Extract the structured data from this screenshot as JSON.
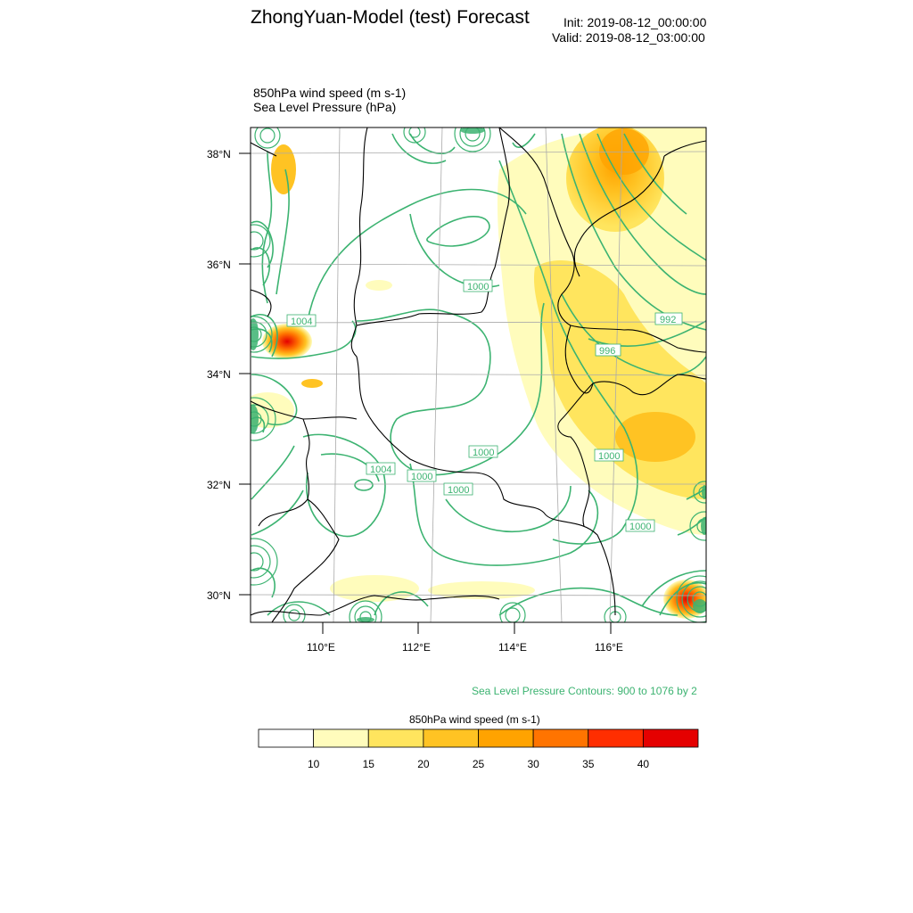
{
  "title": "ZhongYuan-Model (test) Forecast",
  "init": "Init: 2019-08-12_00:00:00",
  "valid": "Valid: 2019-08-12_03:00:00",
  "fields": {
    "wind": "850hPa wind speed   (m s-1)",
    "slp": "Sea Level Pressure   (hPa)"
  },
  "axes": {
    "lat_ticks": [
      "38°N",
      "36°N",
      "34°N",
      "32°N",
      "30°N"
    ],
    "lon_ticks": [
      "110°E",
      "112°E",
      "114°E",
      "116°E"
    ]
  },
  "contour_labels": [
    "1004",
    "1000",
    "992",
    "996",
    "1004",
    "1000",
    "1000",
    "1000",
    "1000",
    "1000"
  ],
  "contour_note": "Sea Level Pressure Contours: 900 to 1076 by 2",
  "colorbar": {
    "title": "850hPa wind speed  (m s-1)",
    "levels": [
      "10",
      "15",
      "20",
      "25",
      "30",
      "35",
      "40"
    ],
    "colors": [
      "#ffffff",
      "#fffcbc",
      "#ffe55e",
      "#ffc323",
      "#ffa300",
      "#ff7400",
      "#ff2e00",
      "#e50000"
    ]
  },
  "colors": {
    "contour": "#3cb371",
    "border": "#000000"
  }
}
